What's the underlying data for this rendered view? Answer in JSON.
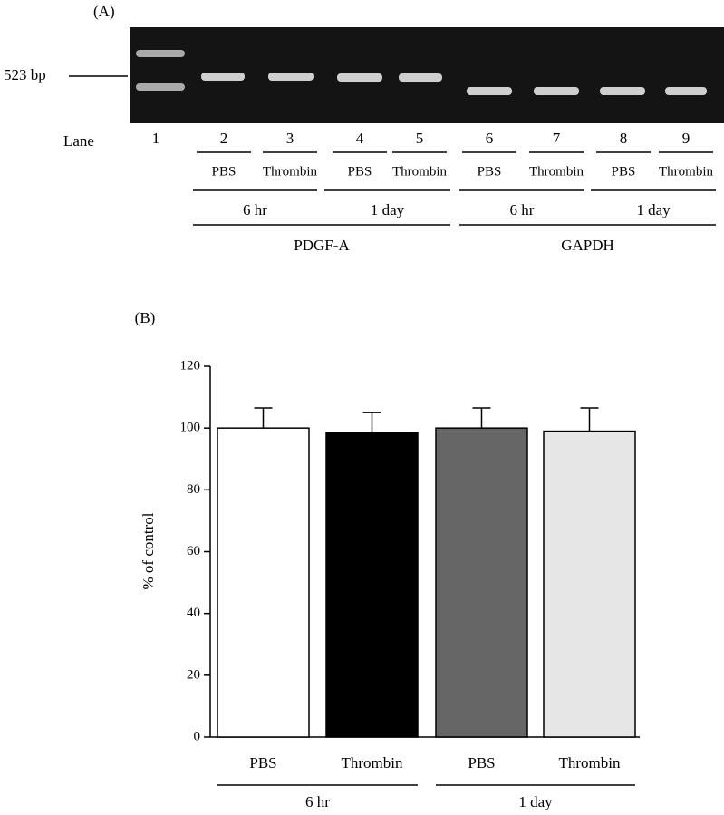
{
  "panel_a": {
    "label": "(A)",
    "marker": "523 bp",
    "lane_title": "Lane",
    "lanes": [
      "1",
      "2",
      "3",
      "4",
      "5",
      "6",
      "7",
      "8",
      "9"
    ],
    "treatments": [
      "PBS",
      "Thrombin",
      "PBS",
      "Thrombin",
      "PBS",
      "Thrombin",
      "PBS",
      "Thrombin"
    ],
    "times": [
      "6 hr",
      "1 day",
      "6 hr",
      "1 day"
    ],
    "genes": [
      "PDGF-A",
      "GAPDH"
    ]
  },
  "chart_data": {
    "type": "bar",
    "panel_label": "(B)",
    "ylabel": "% of control",
    "categories": [
      "PBS",
      "Thrombin",
      "PBS",
      "Thrombin"
    ],
    "groups": [
      "6 hr",
      "1 day"
    ],
    "values": [
      100,
      98.5,
      100,
      99
    ],
    "errors": [
      6.5,
      6.5,
      6.5,
      7.5
    ],
    "colors": [
      "#ffffff",
      "#000000",
      "#666666",
      "#e6e6e6"
    ],
    "ylim": [
      0,
      120
    ],
    "yticks": [
      0,
      20,
      40,
      60,
      80,
      100,
      120
    ]
  }
}
